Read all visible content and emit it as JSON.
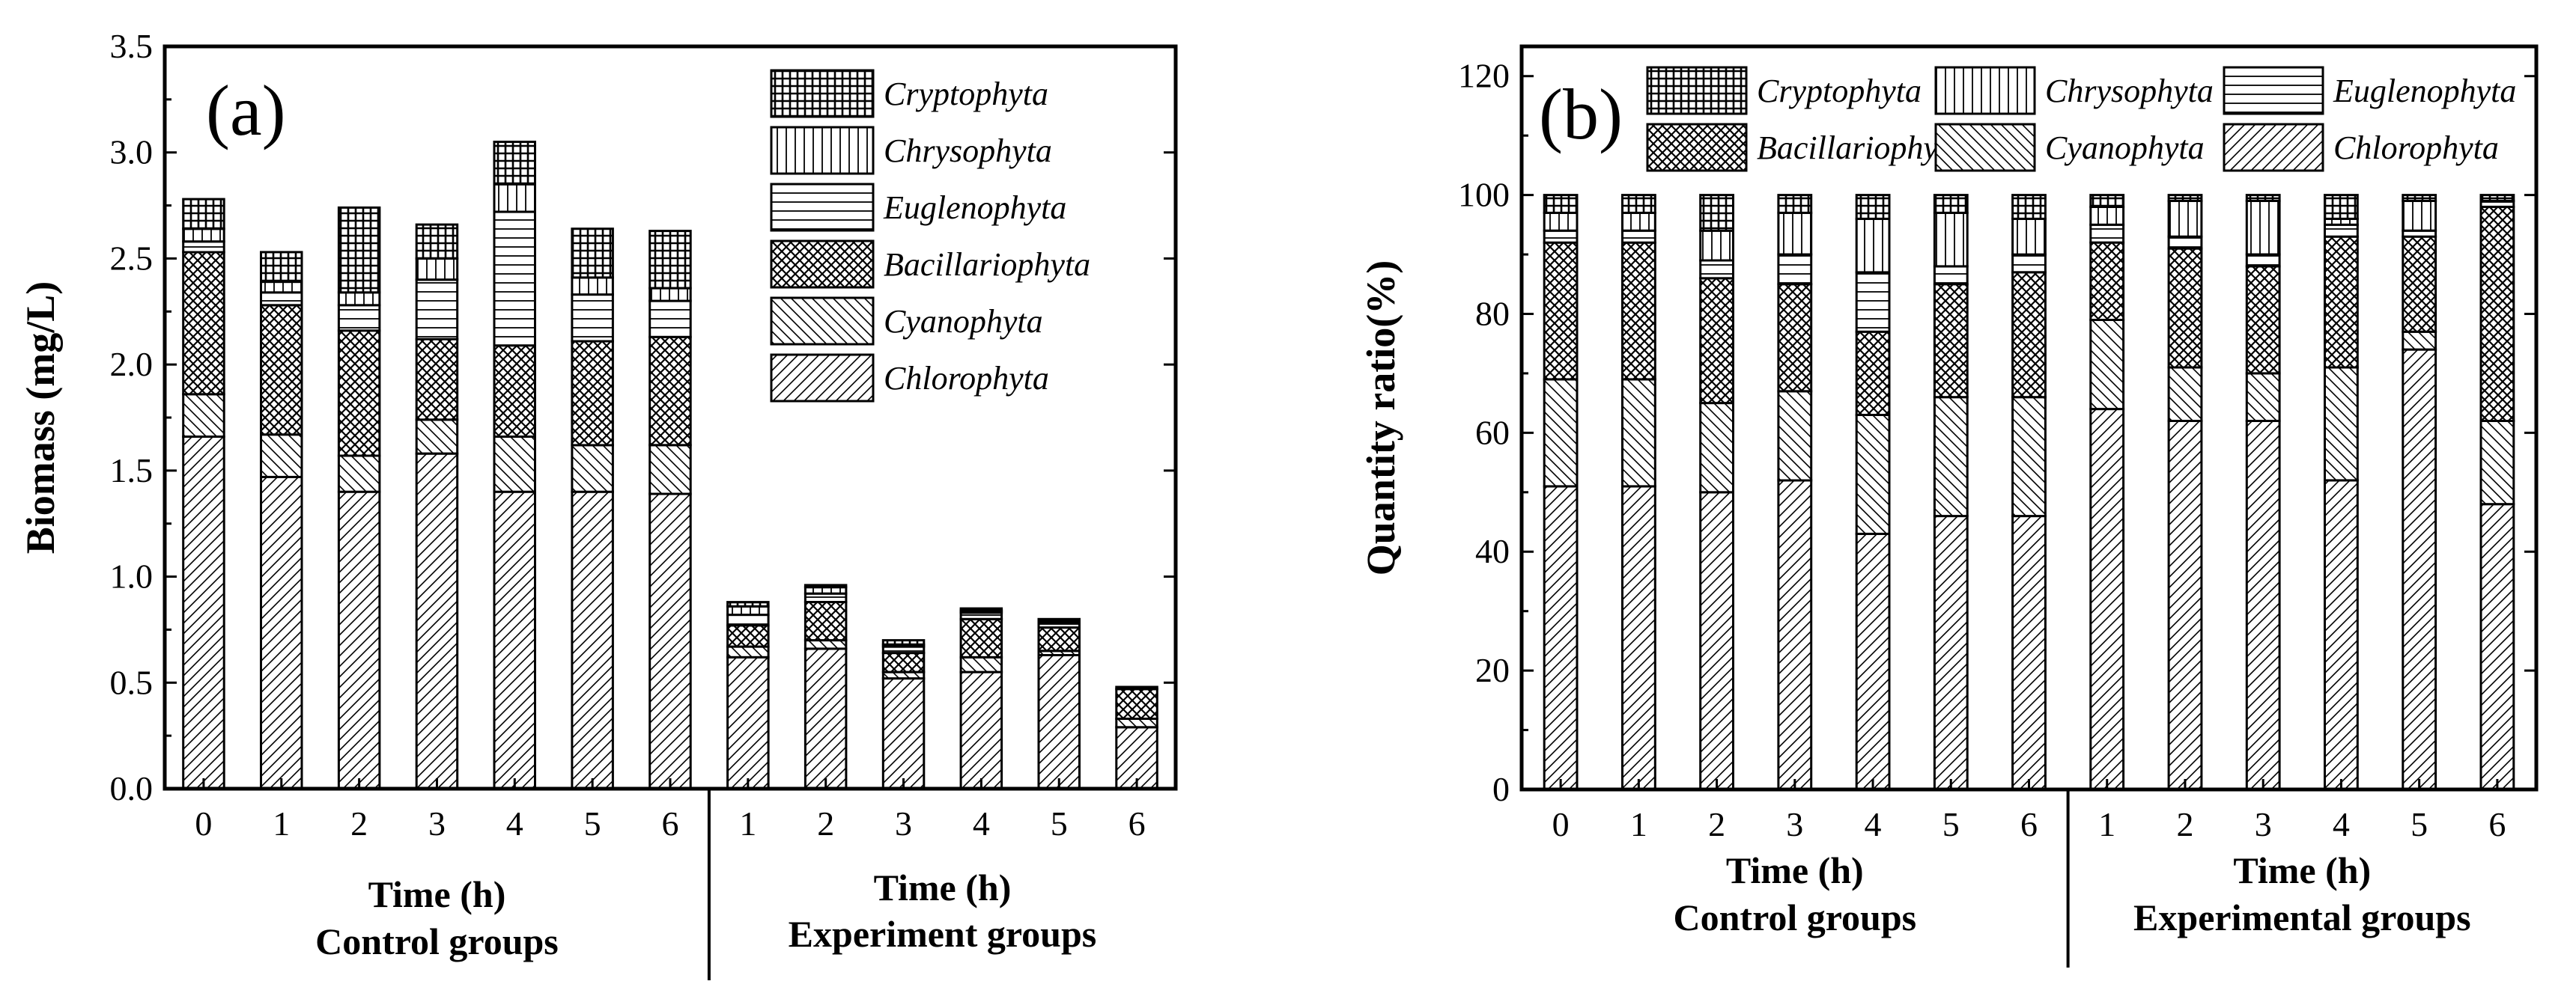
{
  "chart_data": [
    {
      "panel": "(a)",
      "type": "bar",
      "stacked": true,
      "ylabel": "Biomass (mg/L)",
      "ylim": [
        0,
        3.5
      ],
      "yticks": [
        "0.0",
        "0.5",
        "1.0",
        "1.5",
        "2.0",
        "2.5",
        "3.0",
        "3.5"
      ],
      "groups": [
        {
          "xlabel": "Time (h)",
          "caption": "Control groups",
          "categories": [
            "0",
            "1",
            "2",
            "3",
            "4",
            "5",
            "6"
          ]
        },
        {
          "xlabel": "Time (h)",
          "caption": "Experiment groups",
          "categories": [
            "1",
            "2",
            "3",
            "4",
            "5",
            "6"
          ]
        }
      ],
      "legend": [
        "Cryptophyta",
        "Chrysophyta",
        "Euglenophyta",
        "Bacillariophyta",
        "Cyanophyta",
        "Chlorophyta"
      ],
      "series": [
        {
          "name": "Chlorophyta",
          "values": [
            1.66,
            1.47,
            1.4,
            1.58,
            1.4,
            1.4,
            1.39,
            0.62,
            0.66,
            0.52,
            0.55,
            0.63,
            0.29
          ]
        },
        {
          "name": "Cyanophyta",
          "values": [
            0.2,
            0.2,
            0.17,
            0.16,
            0.26,
            0.22,
            0.23,
            0.05,
            0.04,
            0.03,
            0.07,
            0.02,
            0.04
          ]
        },
        {
          "name": "Bacillariophyta",
          "values": [
            0.67,
            0.61,
            0.59,
            0.38,
            0.43,
            0.49,
            0.51,
            0.1,
            0.18,
            0.09,
            0.18,
            0.11,
            0.14
          ]
        },
        {
          "name": "Euglenophyta",
          "values": [
            0.05,
            0.06,
            0.12,
            0.28,
            0.63,
            0.22,
            0.17,
            0.05,
            0.04,
            0.03,
            0.03,
            0.02,
            0.01
          ]
        },
        {
          "name": "Chrysophyta",
          "values": [
            0.06,
            0.05,
            0.06,
            0.1,
            0.13,
            0.08,
            0.06,
            0.04,
            0.03,
            0.01,
            0.01,
            0.01,
            0.0
          ]
        },
        {
          "name": "Cryptophyta",
          "values": [
            0.14,
            0.14,
            0.4,
            0.16,
            0.2,
            0.23,
            0.27,
            0.02,
            0.01,
            0.02,
            0.01,
            0.01,
            0.0
          ]
        }
      ]
    },
    {
      "panel": "(b)",
      "type": "bar",
      "stacked": true,
      "ylabel": "Quantity ratio(%)",
      "ylim": [
        0,
        125
      ],
      "yticks": [
        "0",
        "20",
        "40",
        "60",
        "80",
        "100",
        "120"
      ],
      "groups": [
        {
          "xlabel": "Time (h)",
          "caption": "Control groups",
          "categories": [
            "0",
            "1",
            "2",
            "3",
            "4",
            "5",
            "6"
          ]
        },
        {
          "xlabel": "Time (h)",
          "caption": "Experimental groups",
          "categories": [
            "1",
            "2",
            "3",
            "4",
            "5",
            "6"
          ]
        }
      ],
      "legend": [
        "Cryptophyta",
        "Chrysophyta",
        "Euglenophyta",
        "Bacillariophyta",
        "Cyanophyta",
        "Chlorophyta"
      ],
      "series": [
        {
          "name": "Chlorophyta",
          "values": [
            51,
            51,
            50,
            52,
            43,
            46,
            46,
            64,
            62,
            62,
            52,
            74,
            48
          ]
        },
        {
          "name": "Cyanophyta",
          "values": [
            18,
            18,
            15,
            15,
            20,
            20,
            20,
            15,
            9,
            8,
            19,
            3,
            14
          ]
        },
        {
          "name": "Bacillariophyta",
          "values": [
            23,
            23,
            21,
            18,
            14,
            19,
            21,
            13,
            20,
            18,
            22,
            16,
            36
          ]
        },
        {
          "name": "Euglenophyta",
          "values": [
            2,
            2,
            3,
            5,
            10,
            3,
            3,
            3,
            2,
            2,
            2,
            1,
            1
          ]
        },
        {
          "name": "Chrysophyta",
          "values": [
            3,
            3,
            5,
            7,
            9,
            9,
            6,
            3,
            6,
            9,
            1,
            5,
            0
          ]
        },
        {
          "name": "Cryptophyta",
          "values": [
            3,
            3,
            6,
            3,
            4,
            3,
            4,
            2,
            1,
            1,
            4,
            1,
            1
          ]
        }
      ]
    }
  ]
}
